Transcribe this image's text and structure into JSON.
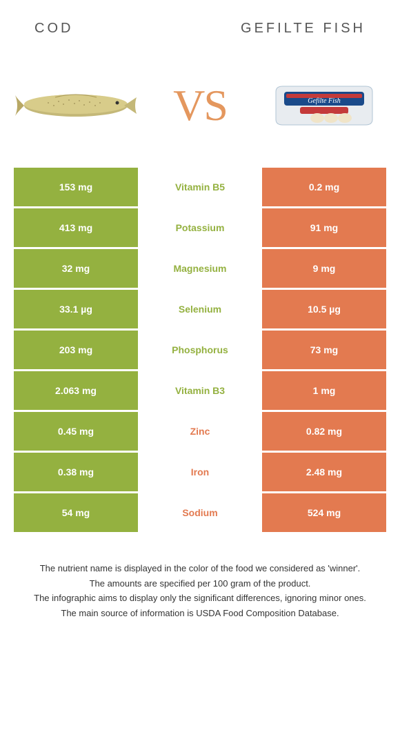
{
  "header": {
    "left_title": "Cod",
    "right_title": "Gefilte fish"
  },
  "vs_label": "VS",
  "colors": {
    "left_bg": "#94b140",
    "right_bg": "#e37a50",
    "left_text": "#94b140",
    "right_text": "#e37a50",
    "vs_text": "#e4975e"
  },
  "rows": [
    {
      "left": "153 mg",
      "label": "Vitamin B5",
      "right": "0.2 mg",
      "winner": "left"
    },
    {
      "left": "413 mg",
      "label": "Potassium",
      "right": "91 mg",
      "winner": "left"
    },
    {
      "left": "32 mg",
      "label": "Magnesium",
      "right": "9 mg",
      "winner": "left"
    },
    {
      "left": "33.1 µg",
      "label": "Selenium",
      "right": "10.5 µg",
      "winner": "left"
    },
    {
      "left": "203 mg",
      "label": "Phosphorus",
      "right": "73 mg",
      "winner": "left"
    },
    {
      "left": "2.063 mg",
      "label": "Vitamin B3",
      "right": "1 mg",
      "winner": "left"
    },
    {
      "left": "0.45 mg",
      "label": "Zinc",
      "right": "0.82 mg",
      "winner": "right"
    },
    {
      "left": "0.38 mg",
      "label": "Iron",
      "right": "2.48 mg",
      "winner": "right"
    },
    {
      "left": "54 mg",
      "label": "Sodium",
      "right": "524 mg",
      "winner": "right"
    }
  ],
  "footer": {
    "line1": "The nutrient name is displayed in the color of the food we considered as 'winner'.",
    "line2": "The amounts are specified per 100 gram of the product.",
    "line3": "The infographic aims to display only the significant differences, ignoring minor ones.",
    "line4": "The main source of information is USDA Food Composition Database."
  }
}
